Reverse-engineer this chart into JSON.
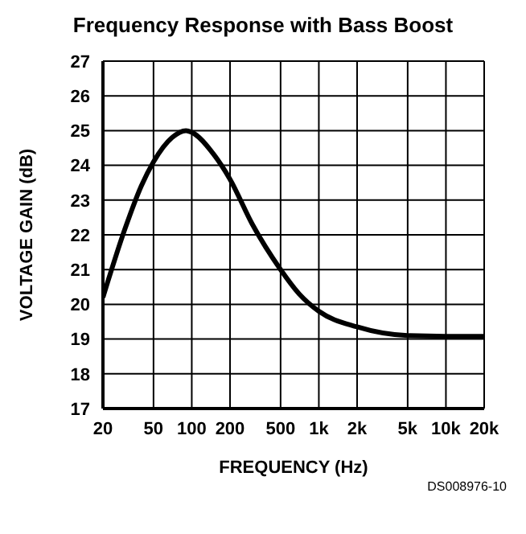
{
  "chart_data": {
    "type": "line",
    "title": "Frequency Response with Bass Boost",
    "xlabel": "FREQUENCY (Hz)",
    "ylabel": "VOLTAGE GAIN (dB)",
    "annotations": [
      "DS008976-10"
    ],
    "x": [
      20,
      30,
      40,
      50,
      70,
      90,
      100,
      150,
      200,
      300,
      500,
      700,
      1000,
      2000,
      5000,
      10000,
      20000
    ],
    "series": [
      {
        "color": "#000000",
        "values": [
          20.2,
          22.2,
          23.4,
          24.1,
          24.8,
          25.0,
          24.95,
          24.3,
          23.6,
          22.3,
          21.0,
          20.3,
          19.8,
          19.35,
          19.1,
          19.08,
          19.08
        ]
      }
    ],
    "log": "x",
    "xlim": [
      20,
      20000
    ],
    "ylim": [
      17,
      27
    ],
    "xticks": [
      20,
      50,
      100,
      200,
      500,
      {
        "value": 1000,
        "label": "1k"
      },
      {
        "value": 2000,
        "label": "2k"
      },
      {
        "value": 5000,
        "label": "5k"
      },
      {
        "value": 10000,
        "label": "10k"
      },
      {
        "value": 20000,
        "label": "20k"
      }
    ],
    "yticks": [
      17,
      18,
      19,
      20,
      21,
      22,
      23,
      24,
      25,
      26,
      27
    ],
    "grid": true,
    "marker": "none",
    "line_style": "solid"
  }
}
